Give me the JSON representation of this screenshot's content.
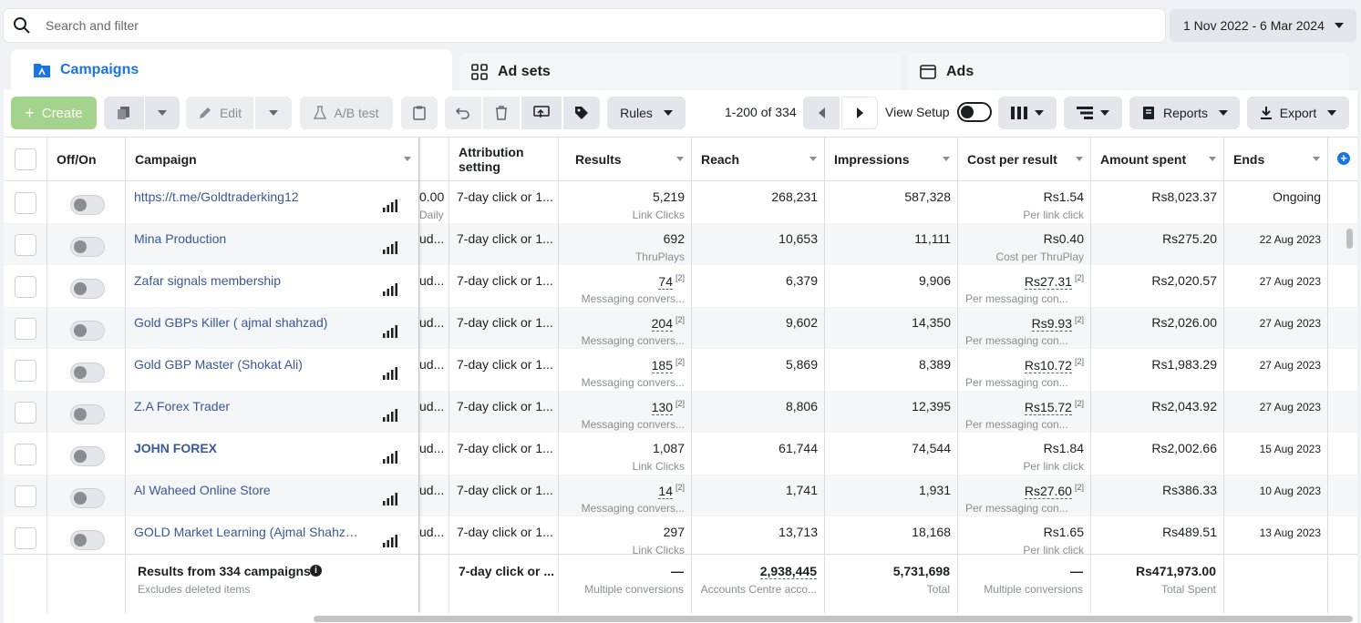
{
  "search": {
    "placeholder": "Search and filter"
  },
  "date_range": "1 Nov 2022 - 6 Mar 2024",
  "tabs": [
    {
      "label": "Campaigns",
      "active": true
    },
    {
      "label": "Ad sets",
      "active": false
    },
    {
      "label": "Ads",
      "active": false
    }
  ],
  "toolbar": {
    "create": "Create",
    "edit": "Edit",
    "ab_test": "A/B test",
    "rules": "Rules",
    "pagination": "1-200 of 334",
    "view_setup": "View Setup",
    "reports": "Reports",
    "export": "Export"
  },
  "columns": {
    "off_on": "Off/On",
    "campaign": "Campaign",
    "attribution_line1": "Attribution",
    "attribution_line2": "setting",
    "results": "Results",
    "reach": "Reach",
    "impressions": "Impressions",
    "cost_per_result": "Cost per result",
    "amount_spent": "Amount spent",
    "ends": "Ends"
  },
  "rows": [
    {
      "campaign": "https://t.me/Goldtraderking12",
      "bold": false,
      "cut_value": "0.00",
      "cut_sub": "Daily",
      "attribution": "7-day click or 1...",
      "results": "5,219",
      "results_note": "",
      "results_sub": "Link Clicks",
      "reach": "268,231",
      "impressions": "587,328",
      "cost": "Rs1.54",
      "cost_note": "",
      "cost_sub": "Per link click",
      "cost_sub_left": false,
      "spent": "Rs8,023.37",
      "ends": "Ongoing"
    },
    {
      "campaign": "Mina Production",
      "bold": false,
      "cut_value": "ud...",
      "cut_sub": "",
      "attribution": "7-day click or 1...",
      "results": "692",
      "results_note": "",
      "results_sub": "ThruPlays",
      "reach": "10,653",
      "impressions": "11,111",
      "cost": "Rs0.40",
      "cost_note": "",
      "cost_sub": "Cost per ThruPlay",
      "cost_sub_left": false,
      "spent": "Rs275.20",
      "ends": "22 Aug 2023"
    },
    {
      "campaign": "Zafar signals membership",
      "bold": false,
      "cut_value": "ud...",
      "cut_sub": "",
      "attribution": "7-day click or 1...",
      "results": "74",
      "results_note": "[2]",
      "results_sub": "Messaging convers...",
      "reach": "6,379",
      "impressions": "9,906",
      "cost": "Rs27.31",
      "cost_note": "[2]",
      "cost_sub": "Per messaging con...",
      "cost_sub_left": true,
      "spent": "Rs2,020.57",
      "ends": "27 Aug 2023"
    },
    {
      "campaign": "Gold GBPs Killer ( ajmal shahzad)",
      "bold": false,
      "cut_value": "ud...",
      "cut_sub": "",
      "attribution": "7-day click or 1...",
      "results": "204",
      "results_note": "[2]",
      "results_sub": "Messaging convers...",
      "reach": "9,602",
      "impressions": "14,350",
      "cost": "Rs9.93",
      "cost_note": "[2]",
      "cost_sub": "Per messaging con...",
      "cost_sub_left": true,
      "spent": "Rs2,026.00",
      "ends": "27 Aug 2023"
    },
    {
      "campaign": "Gold GBP Master (Shokat Ali)",
      "bold": false,
      "cut_value": "ud...",
      "cut_sub": "",
      "attribution": "7-day click or 1...",
      "results": "185",
      "results_note": "[2]",
      "results_sub": "Messaging convers...",
      "reach": "5,869",
      "impressions": "8,389",
      "cost": "Rs10.72",
      "cost_note": "[2]",
      "cost_sub": "Per messaging con...",
      "cost_sub_left": true,
      "spent": "Rs1,983.29",
      "ends": "27 Aug 2023"
    },
    {
      "campaign": "Z.A Forex Trader",
      "bold": false,
      "cut_value": "ud...",
      "cut_sub": "",
      "attribution": "7-day click or 1...",
      "results": "130",
      "results_note": "[2]",
      "results_sub": "Messaging convers...",
      "reach": "8,806",
      "impressions": "12,395",
      "cost": "Rs15.72",
      "cost_note": "[2]",
      "cost_sub": "Per messaging con...",
      "cost_sub_left": true,
      "spent": "Rs2,043.92",
      "ends": "27 Aug 2023"
    },
    {
      "campaign": "JOHN FOREX",
      "bold": true,
      "cut_value": "ud...",
      "cut_sub": "",
      "attribution": "7-day click or 1...",
      "results": "1,087",
      "results_note": "",
      "results_sub": "Link Clicks",
      "reach": "61,744",
      "impressions": "74,544",
      "cost": "Rs1.84",
      "cost_note": "",
      "cost_sub": "Per link click",
      "cost_sub_left": false,
      "spent": "Rs2,002.66",
      "ends": "15 Aug 2023"
    },
    {
      "campaign": "Al Waheed Online Store",
      "bold": false,
      "cut_value": "ud...",
      "cut_sub": "",
      "attribution": "7-day click or 1...",
      "results": "14",
      "results_note": "[2]",
      "results_sub": "Messaging convers...",
      "reach": "1,741",
      "impressions": "1,931",
      "cost": "Rs27.60",
      "cost_note": "[2]",
      "cost_sub": "Per messaging con...",
      "cost_sub_left": true,
      "spent": "Rs386.33",
      "ends": "10 Aug 2023"
    },
    {
      "campaign": "GOLD Market Learning (Ajmal Shahza...",
      "bold": false,
      "cut_value": "ud...",
      "cut_sub": "",
      "attribution": "7-day click or 1...",
      "results": "297",
      "results_note": "",
      "results_sub": "Link Clicks",
      "reach": "13,713",
      "impressions": "18,168",
      "cost": "Rs1.65",
      "cost_note": "",
      "cost_sub": "Per link click",
      "cost_sub_left": false,
      "spent": "Rs489.51",
      "ends": "13 Aug 2023"
    }
  ],
  "footer": {
    "title": "Results from 334 campaigns",
    "subtitle": "Excludes deleted items",
    "attribution": "7-day click or ...",
    "results": "—",
    "results_sub": "Multiple conversions",
    "reach": "2,938,445",
    "reach_sub": "Accounts Centre acco...",
    "impressions": "5,731,698",
    "impressions_sub": "Total",
    "cost": "—",
    "cost_sub": "Multiple conversions",
    "spent": "Rs471,973.00",
    "spent_sub": "Total Spent"
  }
}
